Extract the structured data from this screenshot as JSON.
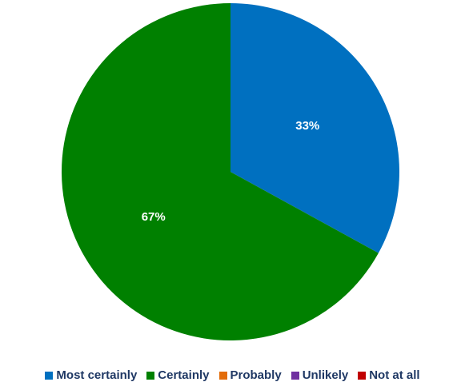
{
  "chart_data": {
    "type": "pie",
    "title": "",
    "categories": [
      "Most certainly",
      "Certainly",
      "Probably",
      "Unlikely",
      "Not at all"
    ],
    "values": [
      33,
      67,
      0,
      0,
      0
    ],
    "value_labels": [
      "33%",
      "67%",
      "",
      "",
      ""
    ],
    "colors": [
      "#0070c0",
      "#008000",
      "#e36c09",
      "#7030a0",
      "#c00000"
    ],
    "legend_position": "bottom",
    "start_angle": "12 o'clock",
    "direction": "clockwise"
  }
}
